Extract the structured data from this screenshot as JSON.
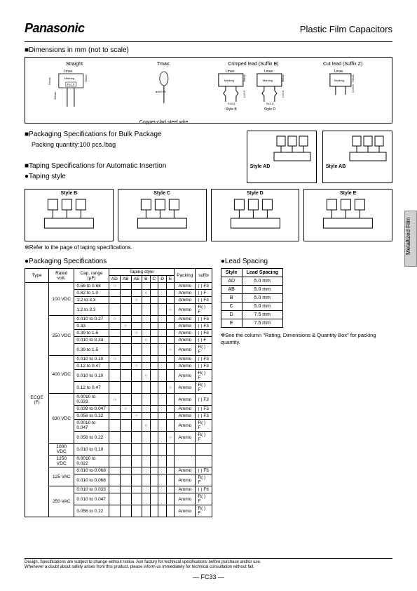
{
  "header": {
    "logo": "Panasonic",
    "category": "Plastic Film Capacitors"
  },
  "sections": {
    "dimensions": "■Dimensions in mm (not to scale)",
    "packaging_bulk": "■Packaging Specifications for Bulk Package",
    "packing_qty": "Packing quantity:100 pcs./bag",
    "taping_spec": "■Taping Specifications for Automatic Insertion",
    "taping_style": "●Taping style",
    "taping_note": "✻Refer to the page of taping specifications.",
    "packaging_spec": "●Packaging Specifications",
    "lead_spacing": "●Lead Spacing"
  },
  "dim_labels": {
    "straight": "Straight",
    "tmax": "Tmax.",
    "crimped": "Crimped lead (Suffix B)",
    "cut": "Cut lead (Suffix Z)",
    "lmax": "Lmax.",
    "marking": "Marking",
    "hmax": "Hmax.",
    "gmax": "Gmax.",
    "f10": "F±1.0",
    "min20": "20min.",
    "copper": "Copper-clad steel wire",
    "od": "ød±0.05",
    "s08": "S±0.8",
    "l305": "L±0.5",
    "z405": "4.0±0.5",
    "styleB": "Style B",
    "styleD": "Style D",
    "styleC": "Style C",
    "styleE": "Style E",
    "styleAD": "Style AD",
    "styleAB": "Style AB"
  },
  "spec_table": {
    "headers": [
      "Type",
      "Rated volt.",
      "Cap. range (μF)",
      "Taping style",
      "Packing",
      "suffix"
    ],
    "sub_headers": [
      "AD",
      "AB",
      "AE",
      "B",
      "C",
      "D",
      "E"
    ],
    "type": "ECQE (F)",
    "rows": [
      {
        "volt": "100 VDC",
        "cap": "0.56 to 0.68",
        "t": [
          "○",
          "",
          "",
          "",
          "",
          "",
          ""
        ],
        "pack": "Ammo",
        "suf": "(   ) F3"
      },
      {
        "volt": "",
        "cap": "0.82 to 1.0",
        "t": [
          "",
          "",
          "",
          "○",
          "",
          "",
          ""
        ],
        "pack": "Ammo",
        "suf": "(   ) F"
      },
      {
        "volt": "",
        "cap": "1.2 to 3.3",
        "t": [
          "",
          "",
          "○",
          "",
          "",
          "",
          ""
        ],
        "pack": "Ammo",
        "suf": "(   ) F3"
      },
      {
        "volt": "",
        "cap": "1.2 to 3.3",
        "t": [
          "",
          "",
          "",
          "",
          "",
          "",
          "○"
        ],
        "pack": "Ammo",
        "suf": "R(   ) F"
      },
      {
        "volt": "250 VDC",
        "cap": "0.010 to 0.27",
        "t": [
          "○",
          "",
          "",
          "",
          "",
          "",
          ""
        ],
        "pack": "Ammo",
        "suf": "(   ) F3"
      },
      {
        "volt": "",
        "cap": "0.33",
        "t": [
          "",
          "○",
          "",
          "",
          "",
          "",
          ""
        ],
        "pack": "Ammo",
        "suf": "(   ) F3"
      },
      {
        "volt": "",
        "cap": "0.39 to 1.5",
        "t": [
          "",
          "",
          "○",
          "",
          "",
          "",
          ""
        ],
        "pack": "Ammo",
        "suf": "(   ) F3"
      },
      {
        "volt": "",
        "cap": "0.010 to 0.33",
        "t": [
          "",
          "",
          "",
          "○",
          "",
          "",
          ""
        ],
        "pack": "Ammo",
        "suf": "(   ) F"
      },
      {
        "volt": "",
        "cap": "0.39 to 1.5",
        "t": [
          "",
          "",
          "",
          "",
          "",
          "",
          "○"
        ],
        "pack": "Ammo",
        "suf": "R(   ) F"
      },
      {
        "volt": "400 VDC",
        "cap": "0.010 to 0.10",
        "t": [
          "○",
          "",
          "",
          "",
          "",
          "",
          ""
        ],
        "pack": "Ammo",
        "suf": "(   ) F3"
      },
      {
        "volt": "",
        "cap": "0.12 to 0.47",
        "t": [
          "",
          "",
          "○",
          "",
          "",
          "",
          ""
        ],
        "pack": "Ammo",
        "suf": "(   ) F3"
      },
      {
        "volt": "",
        "cap": "0.010 to 0.10",
        "t": [
          "",
          "",
          "",
          "○",
          "",
          "",
          ""
        ],
        "pack": "Ammo",
        "suf": "R(   ) F"
      },
      {
        "volt": "",
        "cap": "0.12 to 0.47",
        "t": [
          "",
          "",
          "",
          "",
          "",
          "",
          "○"
        ],
        "pack": "Ammo",
        "suf": "R(   ) F"
      },
      {
        "volt": "630 VDC",
        "cap": "0.0010 to 0.033",
        "t": [
          "○",
          "",
          "",
          "",
          "",
          "",
          ""
        ],
        "pack": "Ammo",
        "suf": "(   ) F3"
      },
      {
        "volt": "",
        "cap": "0.039 to 0.047",
        "t": [
          "",
          "○",
          "",
          "",
          "",
          "",
          ""
        ],
        "pack": "Ammo",
        "suf": "(   ) F3"
      },
      {
        "volt": "",
        "cap": "0.056 to 0.22",
        "t": [
          "",
          "",
          "○",
          "",
          "",
          "",
          ""
        ],
        "pack": "Ammo",
        "suf": "(   ) F3"
      },
      {
        "volt": "",
        "cap": "0.0010 to 0.047",
        "t": [
          "",
          "",
          "",
          "○",
          "",
          "",
          ""
        ],
        "pack": "Ammo",
        "suf": "R(   ) F"
      },
      {
        "volt": "",
        "cap": "0.056 to 0.22",
        "t": [
          "",
          "",
          "",
          "",
          "",
          "",
          "○"
        ],
        "pack": "Ammo",
        "suf": "R(   ) F"
      },
      {
        "volt": "1000 VDC",
        "cap": "0.010 to 0.10",
        "t": [
          "",
          "",
          "",
          "",
          "",
          "",
          ""
        ],
        "pack": "",
        "suf": ""
      },
      {
        "volt": "1250 VDC",
        "cap": "0.0010 to 0.022",
        "t": [
          "",
          "",
          "",
          "",
          "",
          "",
          ""
        ],
        "pack": "",
        "suf": ""
      },
      {
        "volt": "125 VAC",
        "cap": "0.010 to 0.068",
        "t": [
          "",
          "",
          "",
          "",
          "",
          "",
          ""
        ],
        "pack": "Ammo",
        "suf": "(   ) F6"
      },
      {
        "volt": "",
        "cap": "0.010 to 0.068",
        "t": [
          "",
          "",
          "",
          "",
          "",
          "",
          ""
        ],
        "pack": "Ammo",
        "suf": "R(   ) F"
      },
      {
        "volt": "250 VAC",
        "cap": "0.010 to 0.033",
        "t": [
          "",
          "",
          "",
          "",
          "",
          "",
          ""
        ],
        "pack": "Ammo",
        "suf": "(   ) F6"
      },
      {
        "volt": "",
        "cap": "0.010 to 0.047",
        "t": [
          "",
          "",
          "",
          "",
          "",
          "",
          ""
        ],
        "pack": "Ammo",
        "suf": "R(   ) F"
      },
      {
        "volt": "",
        "cap": "0.056 to 0.22",
        "t": [
          "",
          "",
          "",
          "",
          "",
          "",
          ""
        ],
        "pack": "Ammo",
        "suf": "R(   ) F"
      }
    ]
  },
  "lead_table": {
    "headers": [
      "Style",
      "Lead Spacing"
    ],
    "rows": [
      [
        "AD",
        "5.0 mm"
      ],
      [
        "AB",
        "5.0 mm"
      ],
      [
        "B",
        "5.0 mm"
      ],
      [
        "C",
        "5.0 mm"
      ],
      [
        "D",
        "7.5 mm"
      ],
      [
        "E",
        "7.5 mm"
      ]
    ],
    "note": "✻See the column \"Rating, Dimensions & Quantity Box\" for packing quantity."
  },
  "side_tab": "Metallized Film",
  "footer": {
    "line1": "Design, Specifications are subject to change without notice.    Ask factory for technical specifications before purchase and/or use.",
    "line2": "Whenever a doubt about safety arises from this product, please inform us immediately for technical consultation without fail.",
    "page": "— FC33 —"
  }
}
